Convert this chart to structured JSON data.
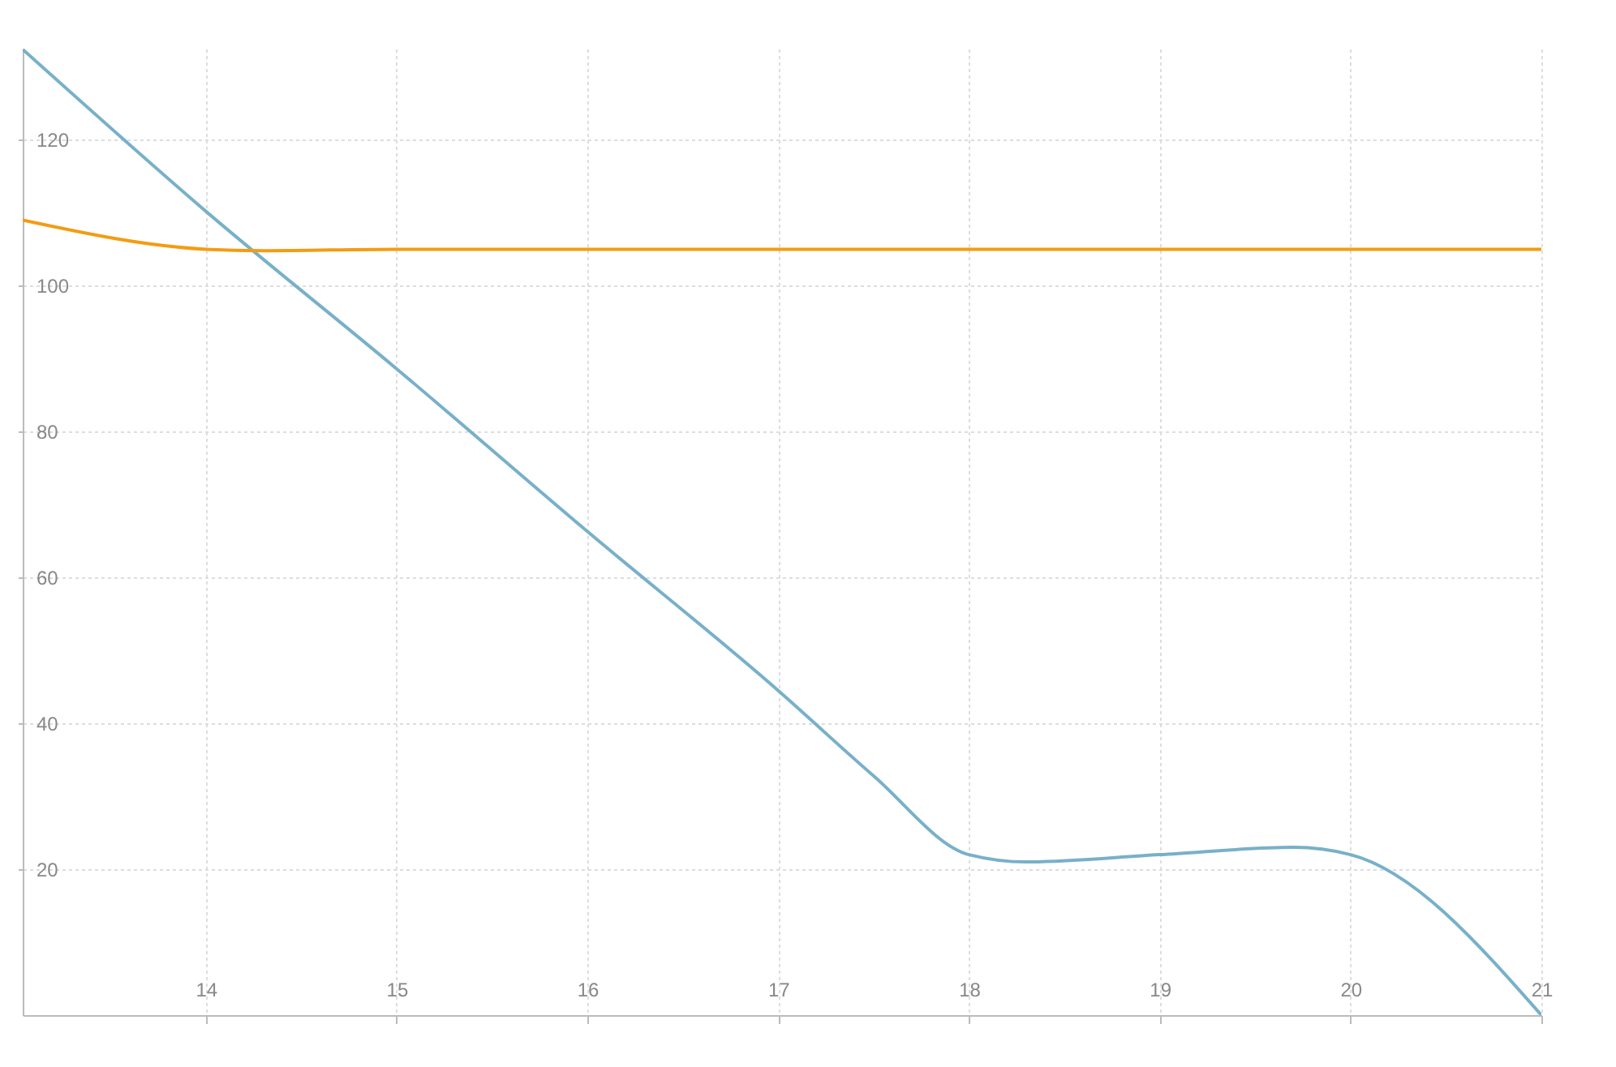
{
  "chart_data": {
    "type": "line",
    "xlim": [
      13.04,
      21
    ],
    "ylim": [
      0,
      132.5
    ],
    "xticks": [
      14,
      15,
      16,
      17,
      18,
      19,
      20,
      21
    ],
    "yticks": [
      20,
      40,
      60,
      80,
      100,
      120
    ],
    "grid": true,
    "legend": false,
    "marker": "none",
    "line_style": "solid",
    "series": [
      {
        "color": "#78b0c9",
        "x": [
          13.04,
          14,
          15,
          16,
          17,
          17.5,
          18,
          18.3,
          19,
          19.7,
          20,
          21
        ],
        "values": [
          132.4,
          110.2,
          88.6,
          66.3,
          44.5,
          32.8,
          22,
          21,
          22,
          23,
          22,
          0
        ]
      },
      {
        "color": "#f39c12",
        "x": [
          13.04,
          14,
          14.3,
          15,
          16,
          17,
          18,
          19,
          20,
          21
        ],
        "values": [
          109,
          105,
          104.8,
          105,
          105,
          105,
          105,
          105,
          105,
          105
        ]
      }
    ]
  }
}
